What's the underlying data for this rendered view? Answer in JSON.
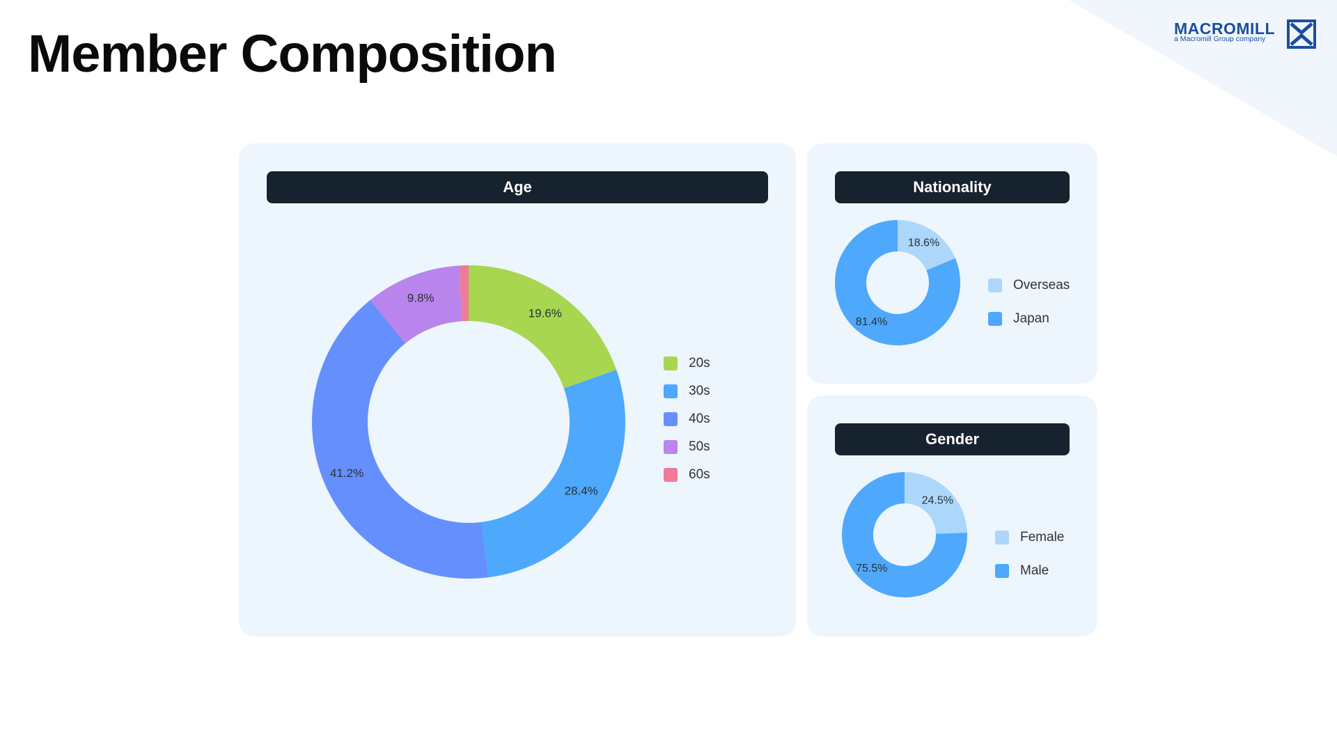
{
  "page": {
    "title": "Member Composition"
  },
  "brand": {
    "name": "MACROMILL",
    "tagline": "a Macromill Group company",
    "color": "#1b4f9c",
    "icon": "macromill-logo-icon"
  },
  "theme": {
    "panel_bg": "#edf5fd",
    "header_bg": "#17222f",
    "header_fg": "#ffffff"
  },
  "chart_data": [
    {
      "id": "age",
      "type": "pie",
      "title": "Age",
      "categories": [
        "20s",
        "30s",
        "40s",
        "50s",
        "60s"
      ],
      "values": [
        19.6,
        28.4,
        41.2,
        9.8,
        1.0
      ],
      "labels": [
        "19.6%",
        "28.4%",
        "41.2%",
        "9.8%",
        ""
      ],
      "colors": [
        "#a8d651",
        "#4ea8fc",
        "#658ffd",
        "#b985ec",
        "#ee7b98"
      ],
      "donut": true,
      "legend": "right"
    },
    {
      "id": "nationality",
      "type": "pie",
      "title": "Nationality",
      "categories": [
        "Overseas",
        "Japan"
      ],
      "values": [
        18.6,
        81.4
      ],
      "labels": [
        "18.6%",
        "81.4%"
      ],
      "colors": [
        "#acd7fb",
        "#4ea8fc"
      ],
      "donut": true,
      "legend": "right"
    },
    {
      "id": "gender",
      "type": "pie",
      "title": "Gender",
      "categories": [
        "Female",
        "Male"
      ],
      "values": [
        24.5,
        75.5
      ],
      "labels": [
        "24.5%",
        "75.5%"
      ],
      "colors": [
        "#acd7fb",
        "#4ea8fc"
      ],
      "donut": true,
      "legend": "right"
    }
  ]
}
